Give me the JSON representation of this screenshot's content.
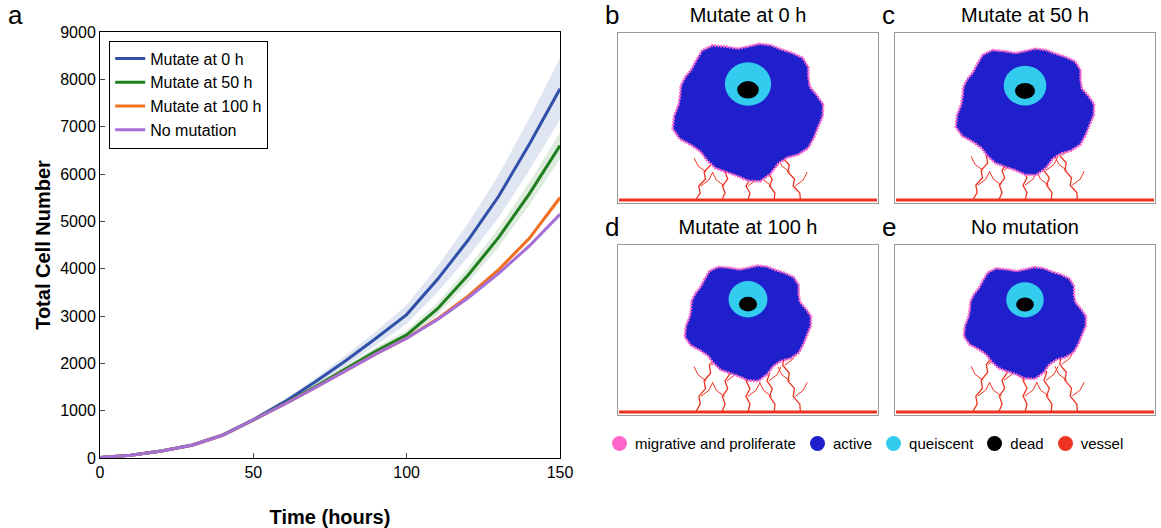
{
  "chart_data": {
    "type": "line",
    "x": [
      0,
      10,
      20,
      30,
      40,
      50,
      60,
      70,
      80,
      90,
      100,
      110,
      120,
      130,
      140,
      150
    ],
    "series": [
      {
        "name": "Mutate at 0 h",
        "color": "#2f4fa8",
        "values": [
          10,
          60,
          150,
          275,
          490,
          810,
          1180,
          1600,
          2050,
          2530,
          3030,
          3770,
          4600,
          5530,
          6630,
          7800
        ],
        "spread": [
          2,
          5,
          10,
          15,
          20,
          30,
          50,
          80,
          110,
          150,
          200,
          270,
          360,
          450,
          550,
          650
        ]
      },
      {
        "name": "Mutate at 50 h",
        "color": "#1f7f1f",
        "values": [
          10,
          60,
          150,
          270,
          480,
          800,
          1140,
          1500,
          1880,
          2260,
          2600,
          3150,
          3860,
          4660,
          5580,
          6600
        ],
        "spread": [
          2,
          4,
          8,
          10,
          12,
          15,
          20,
          40,
          60,
          80,
          100,
          130,
          160,
          200,
          240,
          280
        ]
      },
      {
        "name": "Mutate at 100 h",
        "color": "#f07020",
        "values": [
          10,
          60,
          150,
          270,
          480,
          800,
          1130,
          1480,
          1840,
          2200,
          2530,
          2940,
          3420,
          3980,
          4640,
          5500
        ],
        "spread": [
          2,
          3,
          5,
          6,
          8,
          10,
          12,
          14,
          16,
          18,
          20,
          25,
          30,
          40,
          50,
          70
        ]
      },
      {
        "name": "No mutation",
        "color": "#a46fd6",
        "values": [
          10,
          60,
          150,
          270,
          480,
          800,
          1130,
          1480,
          1840,
          2200,
          2530,
          2920,
          3380,
          3900,
          4480,
          5150
        ],
        "spread": [
          2,
          3,
          5,
          6,
          8,
          10,
          12,
          14,
          16,
          18,
          20,
          25,
          30,
          35,
          45,
          60
        ]
      }
    ],
    "x_label": "Time (hours)",
    "y_label": "Total Cell Number",
    "xlim": [
      0,
      150
    ],
    "xticks": [
      0,
      50,
      100,
      150
    ],
    "ylim": [
      0,
      9000
    ],
    "yticks": [
      0,
      1000,
      2000,
      3000,
      4000,
      5000,
      6000,
      7000,
      8000,
      9000
    ],
    "grid": false,
    "legend": "upper left"
  },
  "chart_letter": "a",
  "simulation_panels": [
    {
      "letter": "b",
      "title": "Mutate at 0 h"
    },
    {
      "letter": "c",
      "title": "Mutate at 50 h"
    },
    {
      "letter": "d",
      "title": "Mutate at 100 h"
    },
    {
      "letter": "e",
      "title": "No mutation"
    }
  ],
  "cell_types": [
    {
      "label": "migrative and proliferate",
      "color": "#ff66cc"
    },
    {
      "label": "active",
      "color": "#1f1fcc"
    },
    {
      "label": "queiscent",
      "color": "#33ccee"
    },
    {
      "label": "dead",
      "color": "#000000"
    },
    {
      "label": "vessel",
      "color": "#ee3322"
    }
  ]
}
